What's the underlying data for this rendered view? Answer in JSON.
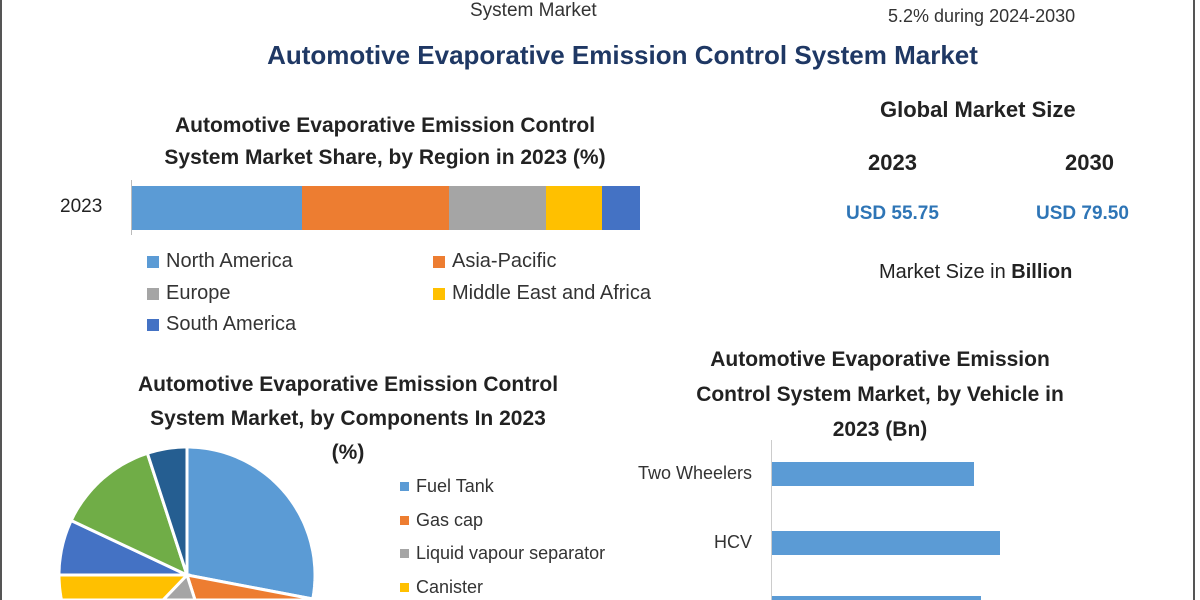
{
  "header": {
    "subtitle_left": "System Market",
    "subtitle_right": "5.2% during 2024-2030",
    "title": "Automotive Evaporative Emission Control System Market"
  },
  "market_size": {
    "title": "Global Market Size",
    "year_a": "2023",
    "year_b": "2030",
    "value_a": "USD 55.75",
    "value_b": "USD 79.50",
    "unit_prefix": "Market Size in ",
    "unit_bold": "Billion"
  },
  "colors": {
    "blue": "#5b9bd5",
    "orange": "#ed7d31",
    "gray": "#a5a5a5",
    "yellow": "#ffc000",
    "darkblue": "#4472c4",
    "green": "#70ad47",
    "navy": "#255e91"
  },
  "chart_data": [
    {
      "type": "bar",
      "orientation": "horizontal-stacked",
      "title_line1": "Automotive Evaporative Emission Control",
      "title_line2": "System Market Share, by Region in 2023 (%)",
      "categories": [
        "2023"
      ],
      "series": [
        {
          "name": "North America",
          "values": [
            33.5
          ],
          "color": "#5b9bd5"
        },
        {
          "name": "Asia-Pacific",
          "values": [
            29
          ],
          "color": "#ed7d31"
        },
        {
          "name": "Europe",
          "values": [
            19
          ],
          "color": "#a5a5a5"
        },
        {
          "name": "Middle East and Africa",
          "values": [
            11
          ],
          "color": "#ffc000"
        },
        {
          "name": "South America",
          "values": [
            7.5
          ],
          "color": "#4472c4"
        }
      ]
    },
    {
      "type": "pie",
      "title_line1": "Automotive Evaporative Emission Control",
      "title_line2": "System Market, by Components In 2023",
      "title_line3": "(%)",
      "slices": [
        {
          "name": "Fuel Tank",
          "value": 28,
          "color": "#5b9bd5"
        },
        {
          "name": "Gas cap",
          "value": 21,
          "color": "#ed7d31"
        },
        {
          "name": "Liquid vapour separator",
          "value": 4,
          "color": "#a5a5a5"
        },
        {
          "name": "Canister",
          "value": 22,
          "color": "#ffc000"
        },
        {
          "name": "",
          "value": 7,
          "color": "#4472c4"
        },
        {
          "name": "",
          "value": 13,
          "color": "#70ad47"
        },
        {
          "name": "",
          "value": 5,
          "color": "#255e91"
        }
      ]
    },
    {
      "type": "bar",
      "orientation": "horizontal",
      "title_line1": "Automotive Evaporative Emission",
      "title_line2": "Control System Market, by Vehicle in",
      "title_line3": "2023 (Bn)",
      "categories": [
        "Two Wheelers",
        "HCV",
        ""
      ],
      "values": [
        20.2,
        22.8,
        20.9
      ],
      "xlim": [
        0,
        25
      ],
      "color": "#5b9bd5"
    }
  ]
}
